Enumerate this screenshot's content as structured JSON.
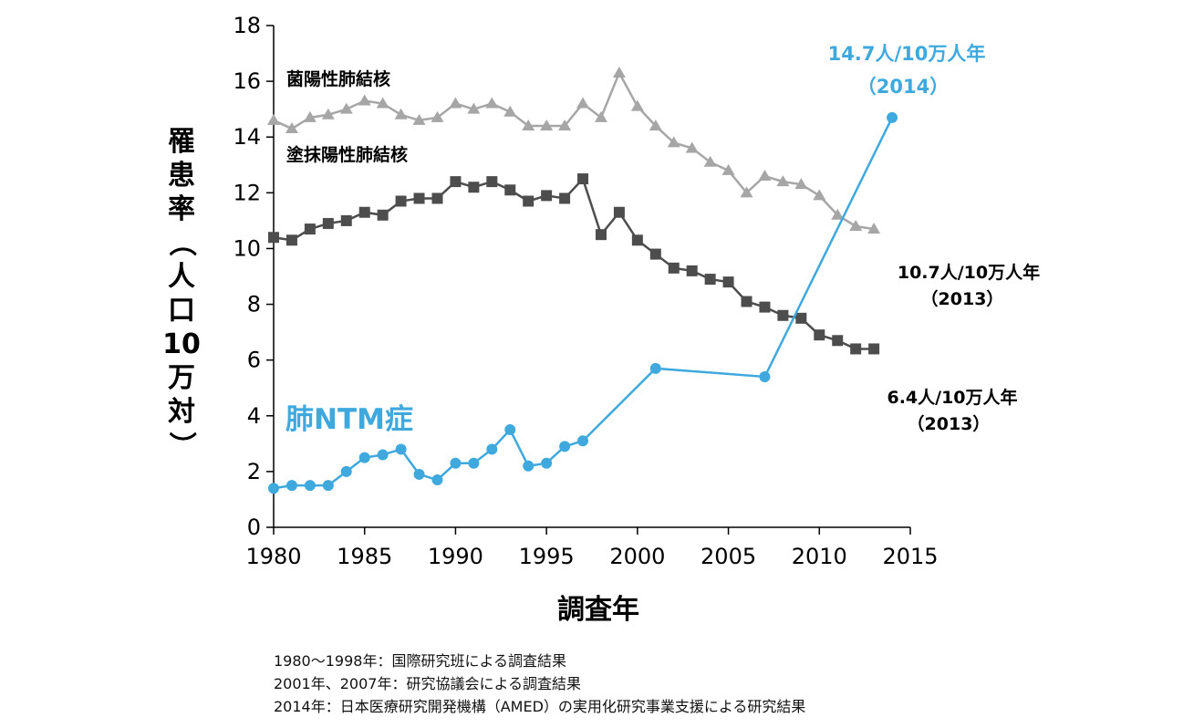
{
  "chart_data": {
    "type": "line",
    "xlabel": "調査年",
    "ylabel": "罹患率（人口10万対）",
    "ylabel_lines": [
      "罹",
      "患",
      "率",
      "（",
      "人",
      "口",
      "10",
      "万",
      "対",
      "）"
    ],
    "xlim": [
      1980,
      2015
    ],
    "ylim": [
      0,
      18
    ],
    "x_ticks": [
      "1980",
      "1985",
      "1990",
      "1995",
      "2000",
      "2005",
      "2010",
      "2015"
    ],
    "y_ticks": [
      "0",
      "2",
      "4",
      "6",
      "8",
      "10",
      "12",
      "14",
      "16",
      "18"
    ],
    "grid": false,
    "series": [
      {
        "name": "菌陽性肺結核",
        "color": "#a6a6a6",
        "marker": "triangle",
        "x": [
          1980,
          1981,
          1982,
          1983,
          1984,
          1985,
          1986,
          1987,
          1988,
          1989,
          1990,
          1991,
          1992,
          1993,
          1994,
          1995,
          1996,
          1997,
          1998,
          1999,
          2000,
          2001,
          2002,
          2003,
          2004,
          2005,
          2006,
          2007,
          2008,
          2009,
          2010,
          2011,
          2012,
          2013
        ],
        "values": [
          14.6,
          14.3,
          14.7,
          14.8,
          15.0,
          15.3,
          15.2,
          14.8,
          14.6,
          14.7,
          15.2,
          15.0,
          15.2,
          14.9,
          14.4,
          14.4,
          14.4,
          15.2,
          14.7,
          16.3,
          15.1,
          14.4,
          13.8,
          13.6,
          13.1,
          12.8,
          12.0,
          12.6,
          12.4,
          12.3,
          11.9,
          11.2,
          10.8,
          10.7
        ]
      },
      {
        "name": "塗抹陽性肺結核",
        "color": "#4d4d4d",
        "marker": "square",
        "x": [
          1980,
          1981,
          1982,
          1983,
          1984,
          1985,
          1986,
          1987,
          1988,
          1989,
          1990,
          1991,
          1992,
          1993,
          1994,
          1995,
          1996,
          1997,
          1998,
          1999,
          2000,
          2001,
          2002,
          2003,
          2004,
          2005,
          2006,
          2007,
          2008,
          2009,
          2010,
          2011,
          2012,
          2013
        ],
        "values": [
          10.4,
          10.3,
          10.7,
          10.9,
          11.0,
          11.3,
          11.2,
          11.7,
          11.8,
          11.8,
          12.4,
          12.2,
          12.4,
          12.1,
          11.7,
          11.9,
          11.8,
          12.5,
          10.5,
          11.3,
          10.3,
          9.8,
          9.3,
          9.2,
          8.9,
          8.8,
          8.1,
          7.9,
          7.6,
          7.5,
          6.9,
          6.7,
          6.4,
          6.4
        ]
      },
      {
        "name": "肺NTM症",
        "color": "#3fa9de",
        "marker": "circle",
        "x": [
          1980,
          1981,
          1982,
          1983,
          1984,
          1985,
          1986,
          1987,
          1988,
          1989,
          1990,
          1991,
          1992,
          1993,
          1994,
          1995,
          1996,
          1997,
          2001,
          2007,
          2014
        ],
        "values": [
          1.4,
          1.5,
          1.5,
          1.5,
          2.0,
          2.5,
          2.6,
          2.8,
          1.9,
          1.7,
          2.3,
          2.3,
          2.8,
          3.5,
          2.2,
          2.3,
          2.9,
          3.1,
          5.7,
          5.4,
          14.7
        ]
      }
    ],
    "annotations": {
      "ntm_label": "肺NTM症",
      "ntm_2014_value": "14.7人/10万人年",
      "ntm_2014_year": "（2014）",
      "bacterial_2013_value": "10.7人/10万人年",
      "bacterial_2013_year": "（2013）",
      "smear_2013_value": "6.4人/10万人年",
      "smear_2013_year": "（2013）"
    }
  },
  "notes": [
    "1980～1998年：国際研究班による調査結果",
    "2001年、2007年：研究協議会による調査結果",
    "2014年：日本医療研究開発機構（AMED）の実用化研究事業支援による研究結果"
  ]
}
